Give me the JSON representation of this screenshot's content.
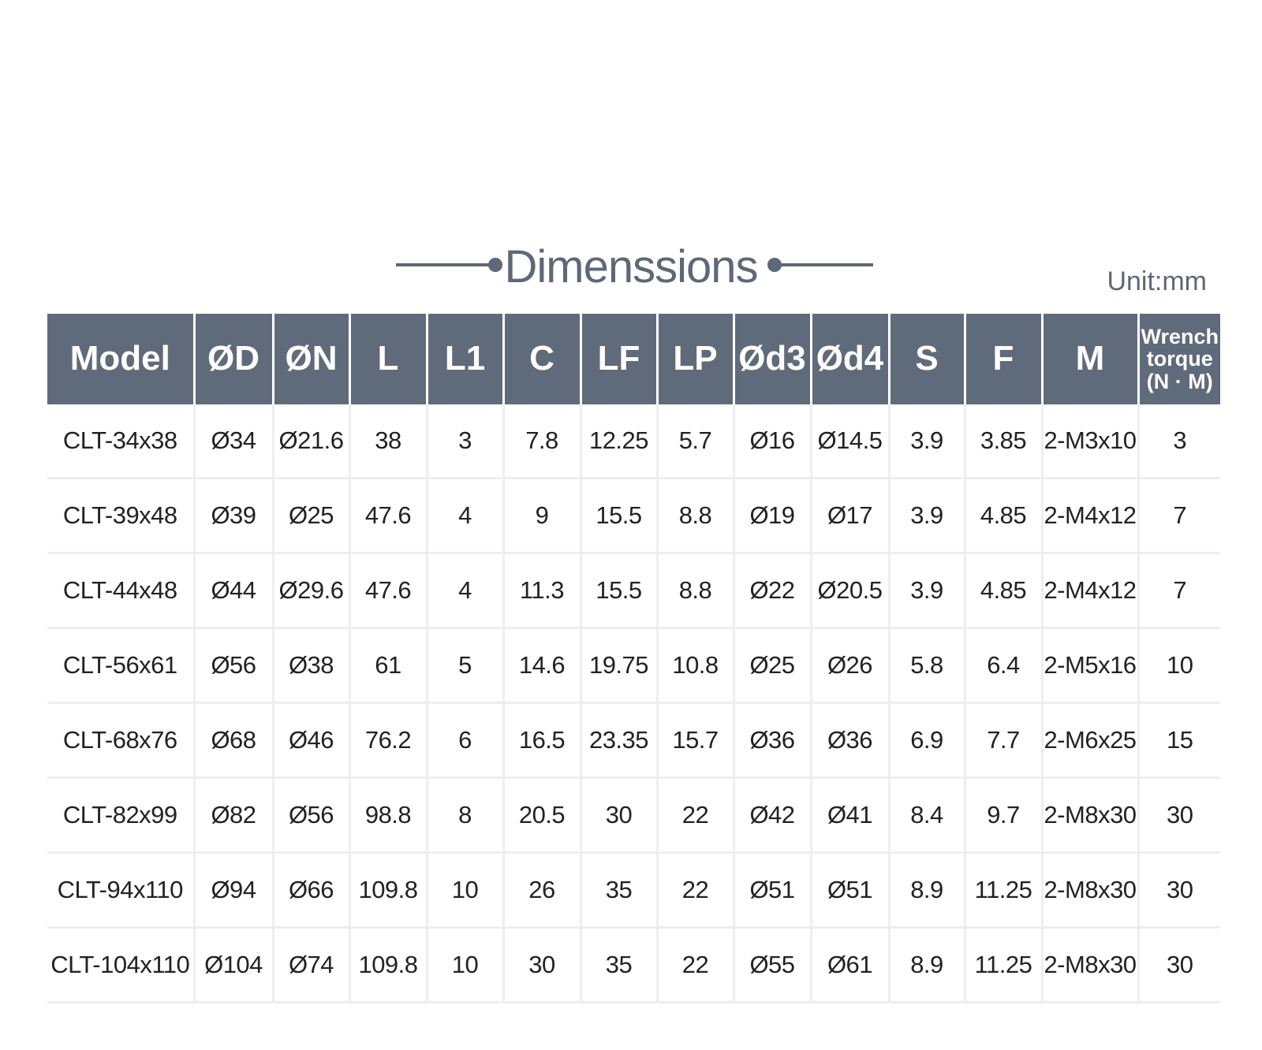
{
  "title": "Dimenssions",
  "unit": "Unit:mm",
  "table": {
    "header": [
      "Model",
      "ØD",
      "ØN",
      "L",
      "L1",
      "C",
      "LF",
      "LP",
      "Ød3",
      "Ød4",
      "S",
      "F",
      "M",
      "Wrench torque (N · M)"
    ],
    "rows": [
      [
        "CLT-34x38",
        "Ø34",
        "Ø21.6",
        "38",
        "3",
        "7.8",
        "12.25",
        "5.7",
        "Ø16",
        "Ø14.5",
        "3.9",
        "3.85",
        "2-M3x10",
        "3"
      ],
      [
        "CLT-39x48",
        "Ø39",
        "Ø25",
        "47.6",
        "4",
        "9",
        "15.5",
        "8.8",
        "Ø19",
        "Ø17",
        "3.9",
        "4.85",
        "2-M4x12",
        "7"
      ],
      [
        "CLT-44x48",
        "Ø44",
        "Ø29.6",
        "47.6",
        "4",
        "11.3",
        "15.5",
        "8.8",
        "Ø22",
        "Ø20.5",
        "3.9",
        "4.85",
        "2-M4x12",
        "7"
      ],
      [
        "CLT-56x61",
        "Ø56",
        "Ø38",
        "61",
        "5",
        "14.6",
        "19.75",
        "10.8",
        "Ø25",
        "Ø26",
        "5.8",
        "6.4",
        "2-M5x16",
        "10"
      ],
      [
        "CLT-68x76",
        "Ø68",
        "Ø46",
        "76.2",
        "6",
        "16.5",
        "23.35",
        "15.7",
        "Ø36",
        "Ø36",
        "6.9",
        "7.7",
        "2-M6x25",
        "15"
      ],
      [
        "CLT-82x99",
        "Ø82",
        "Ø56",
        "98.8",
        "8",
        "20.5",
        "30",
        "22",
        "Ø42",
        "Ø41",
        "8.4",
        "9.7",
        "2-M8x30",
        "30"
      ],
      [
        "CLT-94x110",
        "Ø94",
        "Ø66",
        "109.8",
        "10",
        "26",
        "35",
        "22",
        "Ø51",
        "Ø51",
        "8.9",
        "11.25",
        "2-M8x30",
        "30"
      ],
      [
        "CLT-104x110",
        "Ø104",
        "Ø74",
        "109.8",
        "10",
        "30",
        "35",
        "22",
        "Ø55",
        "Ø61",
        "8.9",
        "11.25",
        "2-M8x30",
        "30"
      ]
    ]
  }
}
